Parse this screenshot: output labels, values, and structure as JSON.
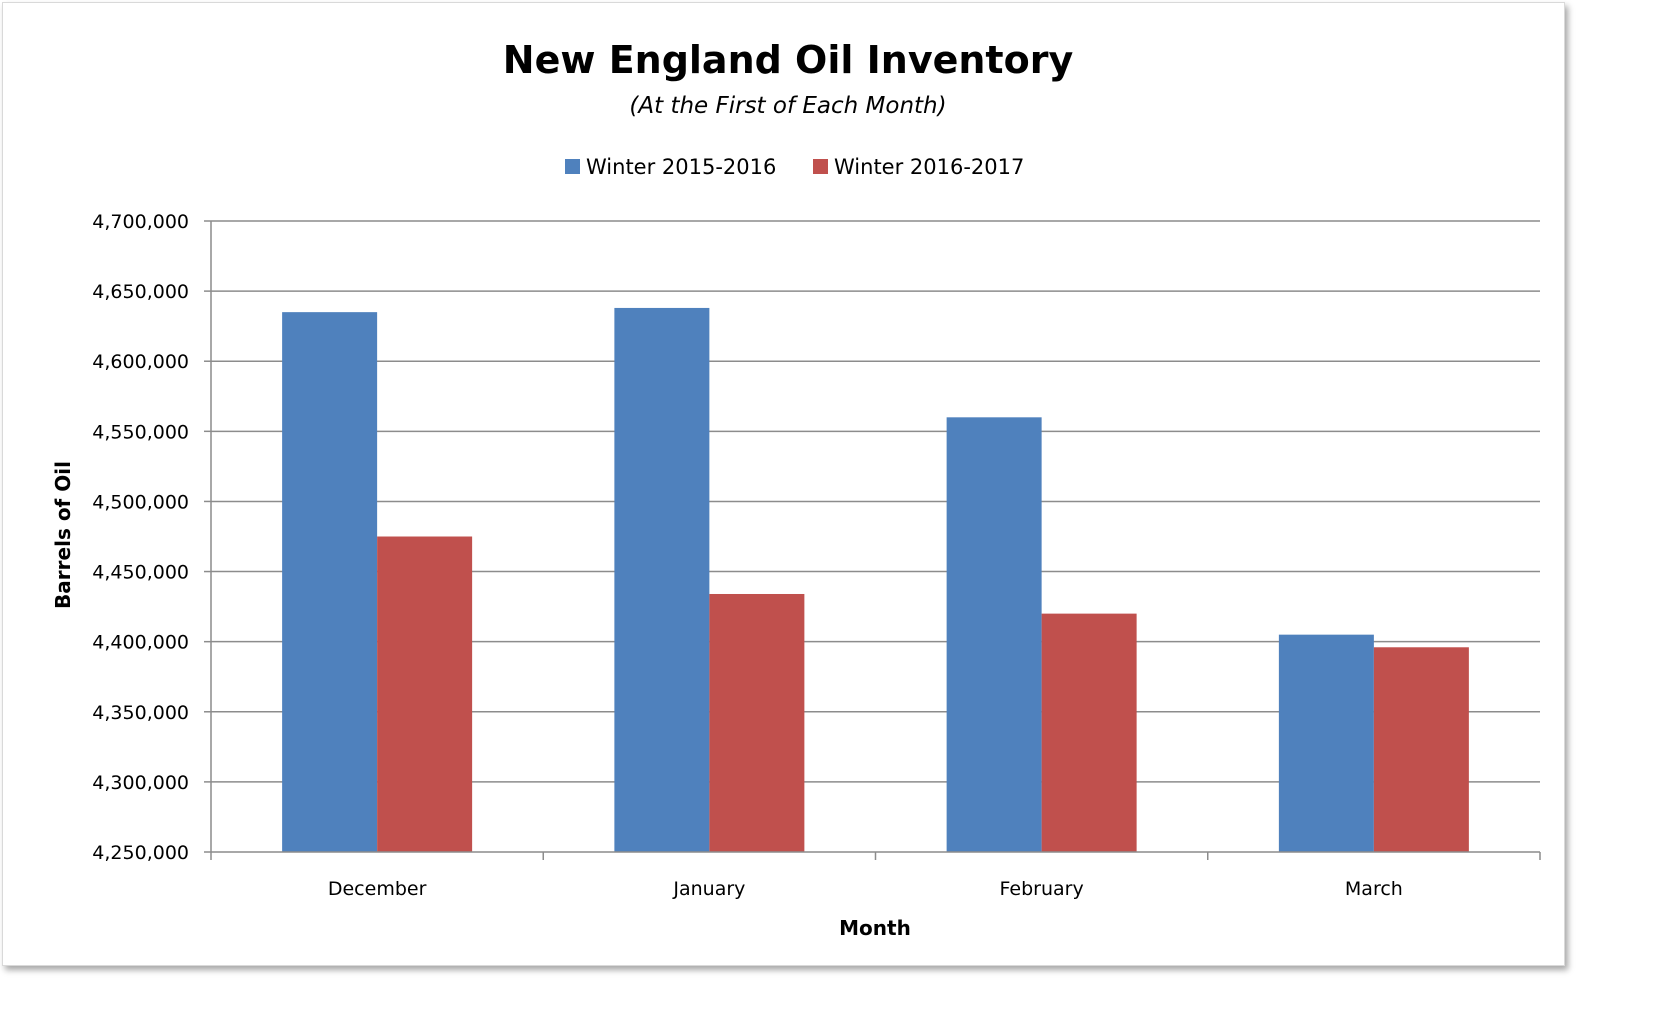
{
  "chart_data": {
    "type": "bar",
    "title": "New England Oil Inventory",
    "subtitle": "(At the First of Each Month)",
    "xlabel": "Month",
    "ylabel": "Barrels of Oil",
    "categories": [
      "December",
      "January",
      "February",
      "March"
    ],
    "series": [
      {
        "name": "Winter 2015-2016",
        "color": "#4f81bd",
        "values": [
          4635000,
          4638000,
          4560000,
          4405000
        ]
      },
      {
        "name": "Winter 2016-2017",
        "color": "#c0504d",
        "values": [
          4475000,
          4434000,
          4420000,
          4396000
        ]
      }
    ],
    "ylim": [
      4250000,
      4700000
    ],
    "yticks": [
      4250000,
      4300000,
      4350000,
      4400000,
      4450000,
      4500000,
      4550000,
      4600000,
      4650000,
      4700000
    ],
    "ytick_labels": [
      "4,250,000",
      "4,300,000",
      "4,350,000",
      "4,400,000",
      "4,450,000",
      "4,500,000",
      "4,550,000",
      "4,600,000",
      "4,650,000",
      "4,700,000"
    ],
    "grid": true,
    "legend_position": "top-center"
  }
}
